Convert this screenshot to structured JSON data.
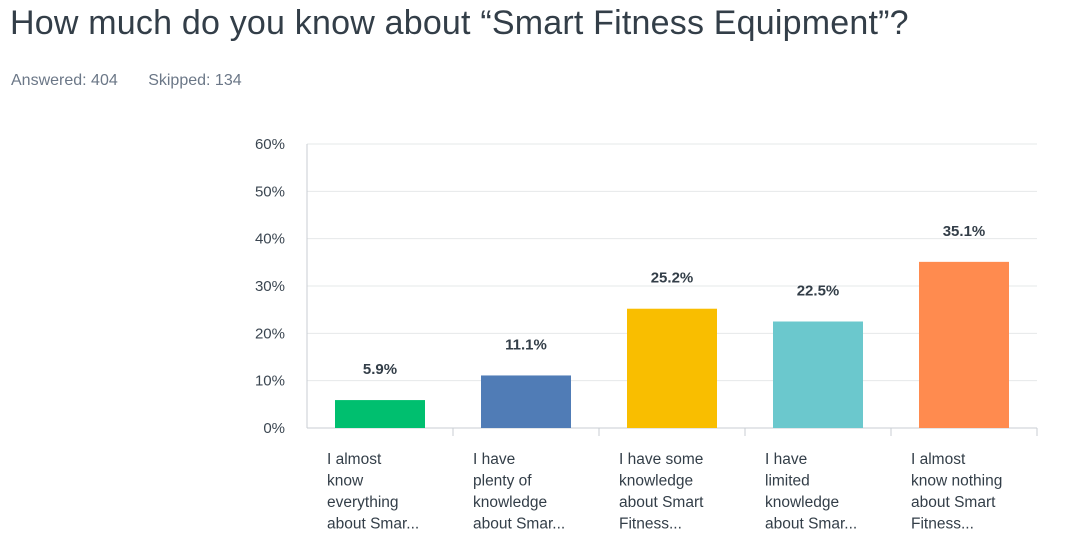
{
  "question": {
    "title": "How much do you know about “Smart Fitness Equipment”?",
    "answered_label": "Answered:",
    "answered": "404",
    "skipped_label": "Skipped:",
    "skipped": "134"
  },
  "chart_data": {
    "type": "bar",
    "title": "",
    "xlabel": "",
    "ylabel": "",
    "ylim": [
      0,
      60
    ],
    "yticks": [
      "0%",
      "10%",
      "20%",
      "30%",
      "40%",
      "50%",
      "60%"
    ],
    "grid": true,
    "categories": [
      [
        "I almost",
        "know",
        "everything",
        "about Smar..."
      ],
      [
        "I have",
        "plenty of",
        "knowledge",
        "about Smar..."
      ],
      [
        "I have some",
        "knowledge",
        "about Smart",
        "Fitness..."
      ],
      [
        "I have",
        "limited",
        "knowledge",
        "about Smar..."
      ],
      [
        "I almost",
        "know nothing",
        "about Smart",
        "Fitness..."
      ]
    ],
    "values": [
      5.9,
      11.1,
      25.2,
      22.5,
      35.1
    ],
    "value_labels": [
      "5.9%",
      "11.1%",
      "25.2%",
      "22.5%",
      "35.1%"
    ],
    "colors": [
      "#00bf6f",
      "#507cb6",
      "#f9be00",
      "#6bc8cd",
      "#ff8b4f"
    ]
  }
}
